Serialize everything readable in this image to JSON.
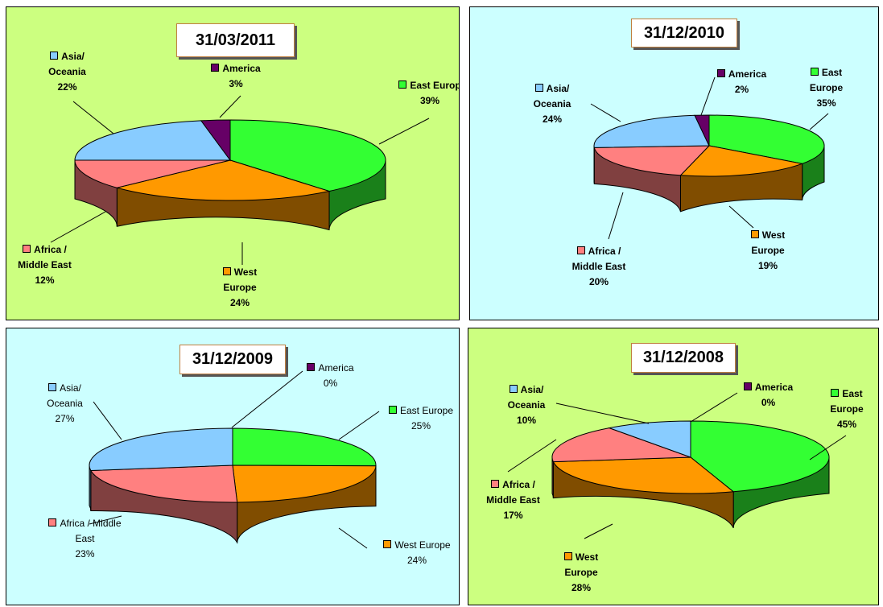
{
  "chart_data": [
    {
      "type": "pie",
      "title": "31/03/2011",
      "background": "#ccff80",
      "categories": [
        "East Europ",
        "West Europe",
        "Africa / Middle East",
        "Asia/ Oceania",
        "America"
      ],
      "values": [
        39,
        24,
        12,
        22,
        3
      ],
      "value_labels": [
        "39%",
        "24%",
        "12%",
        "22%",
        "3%"
      ],
      "colors": [
        "#33ff33",
        "#ff9900",
        "#ff8080",
        "#88ccff",
        "#660066"
      ]
    },
    {
      "type": "pie",
      "title": "31/12/2010",
      "background": "#ccffff",
      "categories": [
        "East Europe",
        "West Europe",
        "Africa / Middle East",
        "Asia/ Oceania",
        "America"
      ],
      "values": [
        35,
        19,
        20,
        24,
        2
      ],
      "value_labels": [
        "35%",
        "19%",
        "20%",
        "24%",
        "2%"
      ],
      "colors": [
        "#33ff33",
        "#ff9900",
        "#ff8080",
        "#88ccff",
        "#660066"
      ]
    },
    {
      "type": "pie",
      "title": "31/12/2009",
      "background": "#ccffff",
      "categories": [
        "East Europe",
        "West Europe",
        "Africa / Middle East",
        "Asia/ Oceania",
        "America"
      ],
      "values": [
        25,
        24,
        23,
        27,
        0
      ],
      "value_labels": [
        "25%",
        "24%",
        "23%",
        "27%",
        "0%"
      ],
      "colors": [
        "#33ff33",
        "#ff9900",
        "#ff8080",
        "#88ccff",
        "#660066"
      ]
    },
    {
      "type": "pie",
      "title": "31/12/2008",
      "background": "#ccff80",
      "categories": [
        "East Europe",
        "West Europe",
        "Africa / Middle East",
        "Asia/ Oceania",
        "America"
      ],
      "values": [
        45,
        28,
        17,
        10,
        0
      ],
      "value_labels": [
        "45%",
        "28%",
        "17%",
        "10%",
        "0%"
      ],
      "colors": [
        "#33ff33",
        "#ff9900",
        "#ff8080",
        "#88ccff",
        "#660066"
      ]
    }
  ]
}
